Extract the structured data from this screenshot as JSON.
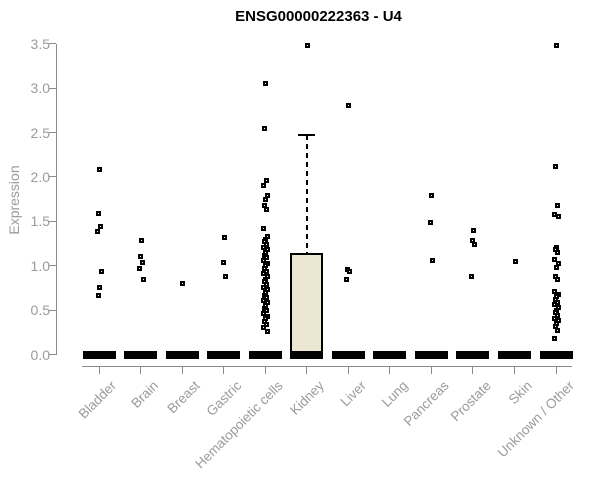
{
  "chart_data": {
    "type": "boxplot",
    "title": "ENSG00000222363 - U4",
    "ylabel": "Expression",
    "xlabel": "",
    "ylim": [
      0.0,
      3.5
    ],
    "yticks": [
      0.0,
      0.5,
      1.0,
      1.5,
      2.0,
      2.5,
      3.0,
      3.5
    ],
    "ytick_labels": [
      "0.0",
      "0.5",
      "1.0",
      "1.5",
      "2.0",
      "2.5",
      "3.0",
      "3.5"
    ],
    "grid": "off",
    "legend": "none",
    "colors": {
      "box_fill": "#ece7d2",
      "box_stroke": "#000000",
      "point_color": "#000000",
      "axis_color": "#8a8a8a",
      "tick_label_color": "#9b9b9b",
      "title_color": "#000000"
    },
    "categories": [
      {
        "label": "Bladder",
        "box": {
          "median": 0,
          "q1": 0,
          "q3": 0,
          "whisker_low": 0,
          "whisker_high": 0
        },
        "points": [
          2.08,
          1.59,
          1.44,
          1.38,
          0.94,
          0.75,
          0.67
        ]
      },
      {
        "label": "Brain",
        "box": {
          "median": 0,
          "q1": 0,
          "q3": 0,
          "whisker_low": 0,
          "whisker_high": 0
        },
        "points": [
          1.28,
          1.1,
          1.04,
          0.97,
          0.85
        ]
      },
      {
        "label": "Breast",
        "box": {
          "median": 0,
          "q1": 0,
          "q3": 0,
          "whisker_low": 0,
          "whisker_high": 0
        },
        "points": [
          0.8
        ]
      },
      {
        "label": "Gastric",
        "box": {
          "median": 0,
          "q1": 0,
          "q3": 0,
          "whisker_low": 0,
          "whisker_high": 0
        },
        "points": [
          1.32,
          1.04,
          0.88
        ]
      },
      {
        "label": "Hematopoietic cells",
        "box": {
          "median": 0,
          "q1": 0,
          "q3": 0,
          "whisker_low": 0,
          "whisker_high": 0
        },
        "points": [
          3.05,
          2.54,
          1.96,
          1.9,
          1.79,
          1.74,
          1.68,
          1.63,
          1.42,
          1.33,
          1.3,
          1.27,
          1.24,
          1.21,
          1.18,
          1.15,
          1.12,
          1.09,
          1.06,
          1.03,
          1.0,
          0.97,
          0.94,
          0.91,
          0.88,
          0.85,
          0.82,
          0.79,
          0.76,
          0.73,
          0.7,
          0.67,
          0.64,
          0.61,
          0.58,
          0.55,
          0.52,
          0.49,
          0.46,
          0.43,
          0.4,
          0.37,
          0.34,
          0.3,
          0.26
        ]
      },
      {
        "label": "Kidney",
        "box": {
          "median": 0,
          "q1": 0,
          "q3": 1.13,
          "whisker_low": 0,
          "whisker_high": 2.47
        },
        "points": [
          3.48
        ]
      },
      {
        "label": "Liver",
        "box": {
          "median": 0,
          "q1": 0,
          "q3": 0,
          "whisker_low": 0,
          "whisker_high": 0
        },
        "points": [
          2.8,
          0.96,
          0.93,
          0.84
        ]
      },
      {
        "label": "Lung",
        "box": {
          "median": 0,
          "q1": 0,
          "q3": 0,
          "whisker_low": 0,
          "whisker_high": 0
        },
        "points": []
      },
      {
        "label": "Pancreas",
        "box": {
          "median": 0,
          "q1": 0,
          "q3": 0,
          "whisker_low": 0,
          "whisker_high": 0
        },
        "points": [
          1.79,
          1.49,
          1.06
        ]
      },
      {
        "label": "Prostate",
        "box": {
          "median": 0,
          "q1": 0,
          "q3": 0,
          "whisker_low": 0,
          "whisker_high": 0
        },
        "points": [
          1.4,
          1.28,
          1.24,
          0.88
        ]
      },
      {
        "label": "Skin",
        "box": {
          "median": 0,
          "q1": 0,
          "q3": 0,
          "whisker_low": 0,
          "whisker_high": 0
        },
        "points": [
          1.05
        ]
      },
      {
        "label": "Unknown / Other",
        "box": {
          "median": 0,
          "q1": 0,
          "q3": 0,
          "whisker_low": 0,
          "whisker_high": 0
        },
        "points": [
          3.48,
          2.12,
          1.68,
          1.58,
          1.55,
          1.21,
          1.18,
          1.15,
          1.07,
          1.02,
          0.98,
          0.88,
          0.85,
          0.71,
          0.68,
          0.65,
          0.62,
          0.59,
          0.56,
          0.53,
          0.5,
          0.47,
          0.44,
          0.41,
          0.38,
          0.35,
          0.31,
          0.27,
          0.18
        ]
      }
    ]
  }
}
